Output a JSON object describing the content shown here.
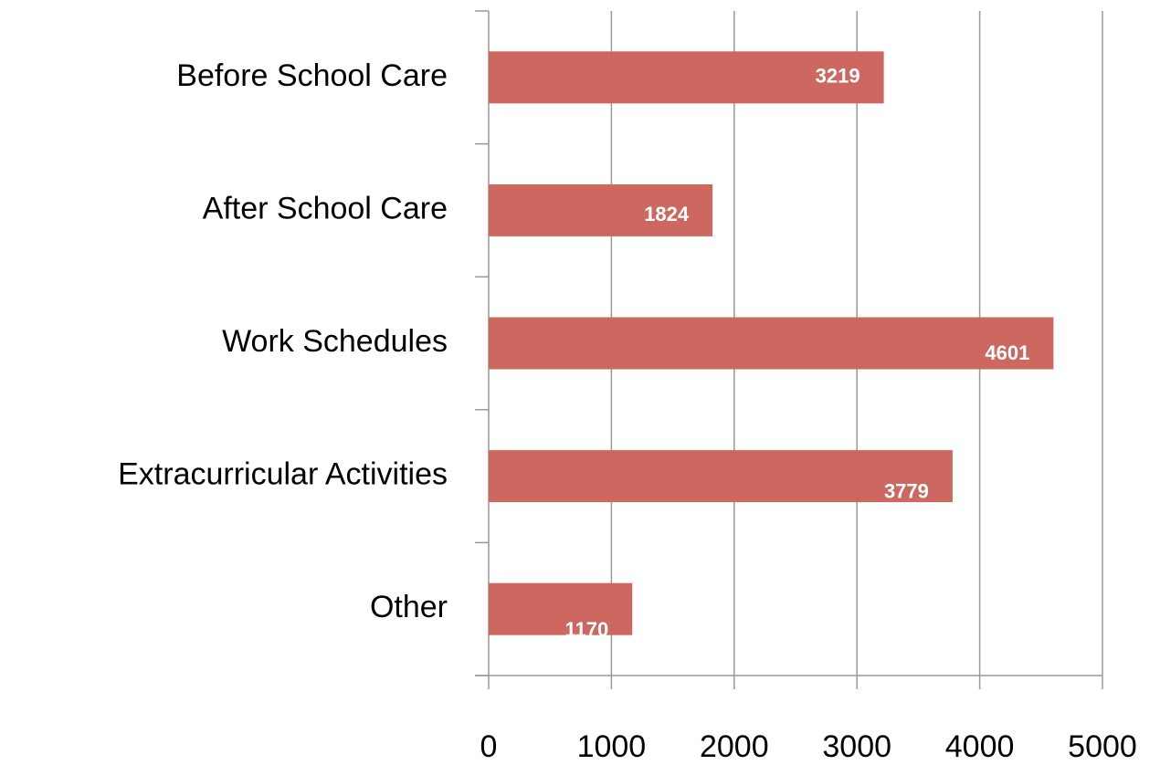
{
  "chart_data": {
    "type": "bar",
    "orientation": "horizontal",
    "categories": [
      "Before School Care",
      "After School Care",
      "Work Schedules",
      "Extracurricular Activities",
      "Other"
    ],
    "values": [
      3219,
      1824,
      4601,
      3779,
      1170
    ],
    "color": "#cd6861",
    "xlim": [
      0,
      5000
    ],
    "xticks": [
      0,
      1000,
      2000,
      3000,
      4000,
      5000
    ],
    "grid": true
  }
}
